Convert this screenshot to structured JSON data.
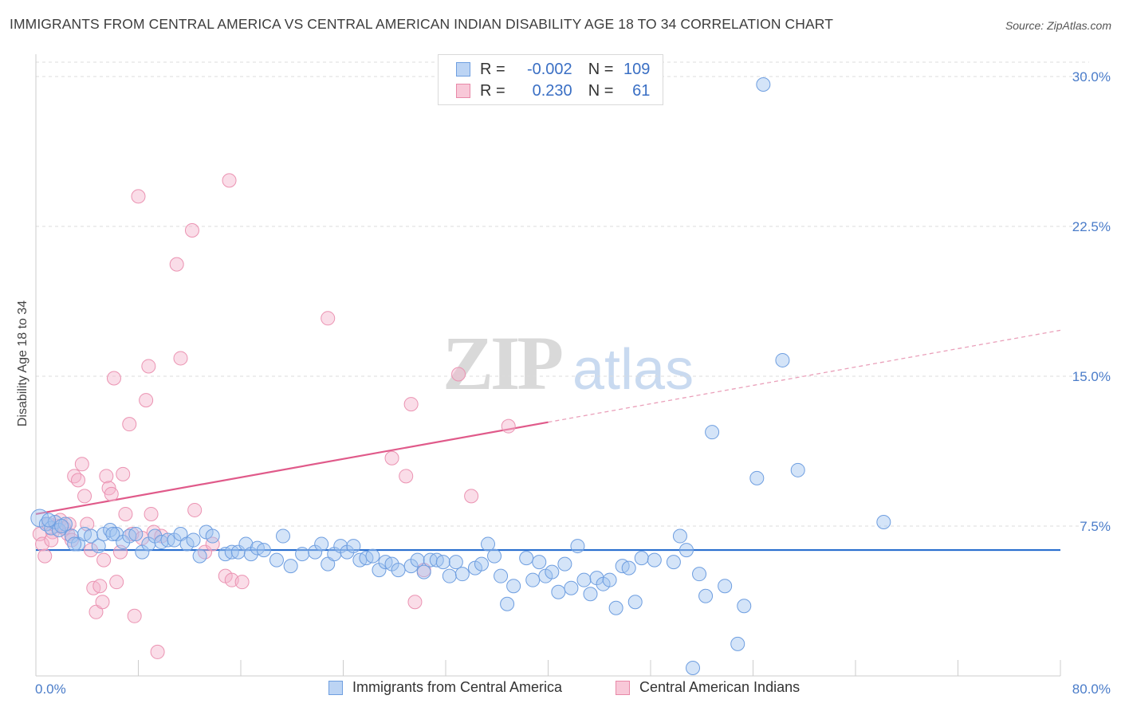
{
  "title": "IMMIGRANTS FROM CENTRAL AMERICA VS CENTRAL AMERICAN INDIAN DISABILITY AGE 18 TO 34 CORRELATION CHART",
  "source": "Source: ZipAtlas.com",
  "watermark": {
    "zip": "ZIP",
    "atlas": "atlas"
  },
  "legend": {
    "rows": [
      {
        "r_label": "R =",
        "r_value": "-0.002",
        "n_label": "N =",
        "n_value": "109"
      },
      {
        "r_label": "R =",
        "r_value": "0.230",
        "n_label": "N =",
        "n_value": "61"
      }
    ]
  },
  "bottom_legend": [
    "Immigrants from Central America",
    "Central American Indians"
  ],
  "chart_data": {
    "type": "scatter",
    "title": "IMMIGRANTS FROM CENTRAL AMERICA VS CENTRAL AMERICAN INDIAN DISABILITY AGE 18 TO 34 CORRELATION CHART",
    "xlabel": "",
    "ylabel": "Disability Age 18 to 34",
    "xlim": [
      0,
      80
    ],
    "ylim": [
      0,
      31
    ],
    "x_tick_labels": [
      "0.0%",
      "80.0%"
    ],
    "y_ticks": [
      7.5,
      15.0,
      22.5,
      30.0
    ],
    "y_tick_labels": [
      "7.5%",
      "15.0%",
      "22.5%",
      "30.0%"
    ],
    "grid": "horizontal dashed",
    "legend_position": "top-center",
    "colors": {
      "blue": "#4a86d8",
      "blue_fill": "#aac8f0",
      "pink": "#e05a8a",
      "pink_fill": "#f5b8cc"
    },
    "series": [
      {
        "name": "Immigrants from Central America",
        "color": "#4a86d8",
        "trend": {
          "x": [
            0,
            80
          ],
          "y": [
            6.3,
            6.3
          ],
          "dashed_from": null
        },
        "points": [
          [
            0.3,
            7.9
          ],
          [
            0.8,
            7.6
          ],
          [
            1.2,
            7.4
          ],
          [
            1.5,
            7.7
          ],
          [
            1.8,
            7.3
          ],
          [
            2.3,
            7.6
          ],
          [
            2.8,
            7.0
          ],
          [
            3.3,
            6.6
          ],
          [
            3.8,
            7.1
          ],
          [
            4.3,
            7.0
          ],
          [
            4.9,
            6.5
          ],
          [
            5.3,
            7.1
          ],
          [
            5.8,
            7.3
          ],
          [
            6.3,
            7.1
          ],
          [
            6.8,
            6.7
          ],
          [
            7.3,
            7.0
          ],
          [
            7.8,
            7.1
          ],
          [
            8.3,
            6.2
          ],
          [
            8.8,
            6.6
          ],
          [
            9.3,
            7.0
          ],
          [
            9.8,
            6.7
          ],
          [
            10.3,
            6.8
          ],
          [
            10.8,
            6.8
          ],
          [
            11.3,
            7.1
          ],
          [
            11.8,
            6.6
          ],
          [
            12.3,
            6.8
          ],
          [
            12.8,
            6.0
          ],
          [
            13.3,
            7.2
          ],
          [
            13.8,
            7.0
          ],
          [
            14.8,
            6.1
          ],
          [
            15.3,
            6.2
          ],
          [
            15.8,
            6.2
          ],
          [
            16.4,
            6.6
          ],
          [
            16.8,
            6.1
          ],
          [
            17.3,
            6.4
          ],
          [
            17.8,
            6.3
          ],
          [
            18.8,
            5.8
          ],
          [
            19.3,
            7.0
          ],
          [
            19.9,
            5.5
          ],
          [
            20.8,
            6.1
          ],
          [
            21.8,
            6.2
          ],
          [
            22.3,
            6.6
          ],
          [
            22.8,
            5.6
          ],
          [
            23.3,
            6.1
          ],
          [
            23.8,
            6.5
          ],
          [
            24.3,
            6.2
          ],
          [
            24.8,
            6.5
          ],
          [
            25.3,
            5.8
          ],
          [
            25.8,
            5.9
          ],
          [
            26.3,
            6.0
          ],
          [
            26.8,
            5.3
          ],
          [
            27.3,
            5.7
          ],
          [
            27.8,
            5.6
          ],
          [
            28.3,
            5.3
          ],
          [
            29.3,
            5.5
          ],
          [
            29.8,
            5.8
          ],
          [
            30.3,
            5.2
          ],
          [
            30.8,
            5.8
          ],
          [
            31.3,
            5.8
          ],
          [
            31.8,
            5.7
          ],
          [
            32.3,
            5.0
          ],
          [
            32.8,
            5.7
          ],
          [
            33.3,
            5.1
          ],
          [
            34.3,
            5.4
          ],
          [
            34.8,
            5.6
          ],
          [
            35.3,
            6.6
          ],
          [
            35.8,
            6.0
          ],
          [
            36.3,
            5.0
          ],
          [
            36.8,
            3.6
          ],
          [
            37.3,
            4.5
          ],
          [
            38.3,
            5.9
          ],
          [
            38.8,
            4.8
          ],
          [
            39.3,
            5.7
          ],
          [
            39.8,
            5.0
          ],
          [
            40.3,
            5.2
          ],
          [
            40.8,
            4.2
          ],
          [
            41.3,
            5.6
          ],
          [
            41.8,
            4.4
          ],
          [
            42.3,
            6.5
          ],
          [
            42.8,
            4.8
          ],
          [
            43.3,
            4.1
          ],
          [
            43.8,
            4.9
          ],
          [
            44.3,
            4.6
          ],
          [
            44.8,
            4.8
          ],
          [
            45.3,
            3.4
          ],
          [
            45.8,
            5.5
          ],
          [
            46.3,
            5.4
          ],
          [
            46.8,
            3.7
          ],
          [
            47.3,
            5.9
          ],
          [
            48.3,
            5.8
          ],
          [
            49.8,
            5.7
          ],
          [
            50.3,
            7.0
          ],
          [
            50.8,
            6.3
          ],
          [
            51.3,
            0.4
          ],
          [
            51.8,
            5.1
          ],
          [
            52.3,
            4.0
          ],
          [
            52.8,
            12.2
          ],
          [
            53.8,
            4.5
          ],
          [
            54.8,
            1.6
          ],
          [
            55.3,
            3.5
          ],
          [
            56.3,
            9.9
          ],
          [
            56.8,
            29.6
          ],
          [
            58.3,
            15.8
          ],
          [
            59.5,
            10.3
          ],
          [
            66.2,
            7.7
          ],
          [
            1.0,
            7.8
          ],
          [
            2.0,
            7.5
          ],
          [
            3.0,
            6.6
          ],
          [
            6.0,
            7.1
          ]
        ]
      },
      {
        "name": "Central American Indians",
        "color": "#e05a8a",
        "trend": {
          "x": [
            0,
            80
          ],
          "y": [
            8.1,
            17.3
          ],
          "dashed_from": 40
        },
        "points": [
          [
            0.3,
            7.1
          ],
          [
            0.5,
            6.6
          ],
          [
            0.7,
            6.0
          ],
          [
            1.0,
            7.6
          ],
          [
            1.3,
            7.2
          ],
          [
            1.6,
            7.5
          ],
          [
            1.9,
            7.8
          ],
          [
            2.2,
            7.4
          ],
          [
            2.5,
            7.1
          ],
          [
            2.8,
            6.8
          ],
          [
            3.0,
            10.0
          ],
          [
            3.3,
            9.8
          ],
          [
            3.6,
            10.6
          ],
          [
            3.8,
            9.0
          ],
          [
            4.0,
            7.6
          ],
          [
            4.3,
            6.3
          ],
          [
            4.5,
            4.4
          ],
          [
            4.7,
            3.2
          ],
          [
            5.0,
            4.5
          ],
          [
            5.2,
            3.7
          ],
          [
            5.3,
            5.8
          ],
          [
            5.5,
            10.0
          ],
          [
            5.7,
            9.4
          ],
          [
            5.9,
            9.1
          ],
          [
            6.1,
            14.9
          ],
          [
            6.3,
            4.7
          ],
          [
            6.6,
            6.2
          ],
          [
            6.8,
            10.1
          ],
          [
            7.0,
            8.1
          ],
          [
            7.3,
            12.6
          ],
          [
            7.5,
            7.1
          ],
          [
            7.7,
            3.0
          ],
          [
            8.0,
            24.0
          ],
          [
            8.3,
            6.9
          ],
          [
            8.6,
            13.8
          ],
          [
            8.8,
            15.5
          ],
          [
            9.0,
            8.1
          ],
          [
            9.2,
            7.2
          ],
          [
            9.5,
            1.2
          ],
          [
            9.8,
            7.0
          ],
          [
            11.0,
            20.6
          ],
          [
            11.3,
            15.9
          ],
          [
            12.2,
            22.3
          ],
          [
            12.4,
            8.3
          ],
          [
            13.2,
            6.2
          ],
          [
            13.8,
            6.6
          ],
          [
            14.8,
            5.0
          ],
          [
            15.1,
            24.8
          ],
          [
            15.3,
            4.8
          ],
          [
            16.1,
            4.7
          ],
          [
            22.8,
            17.9
          ],
          [
            27.8,
            10.9
          ],
          [
            28.9,
            10.0
          ],
          [
            29.3,
            13.6
          ],
          [
            29.6,
            3.7
          ],
          [
            30.3,
            5.3
          ],
          [
            33.0,
            15.1
          ],
          [
            34.0,
            9.0
          ],
          [
            36.9,
            12.5
          ],
          [
            1.2,
            6.8
          ],
          [
            2.6,
            7.6
          ]
        ]
      }
    ]
  }
}
